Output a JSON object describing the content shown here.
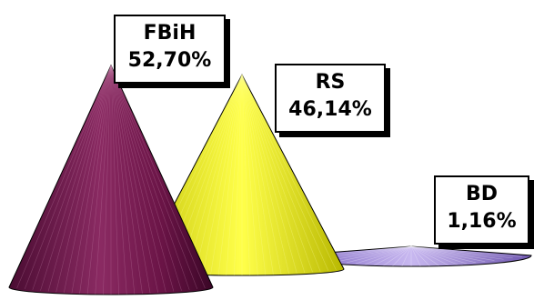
{
  "chart_data": {
    "type": "cone",
    "categories": [
      "FBiH",
      "RS",
      "BD"
    ],
    "values": [
      52.7,
      46.14,
      1.16
    ],
    "value_labels": [
      "52,70%",
      "46,14%",
      "1,16%"
    ],
    "colors": [
      "#7a1f52",
      "#e8e829",
      "#a08ad8"
    ],
    "title": "",
    "xlabel": "",
    "ylabel": ""
  }
}
